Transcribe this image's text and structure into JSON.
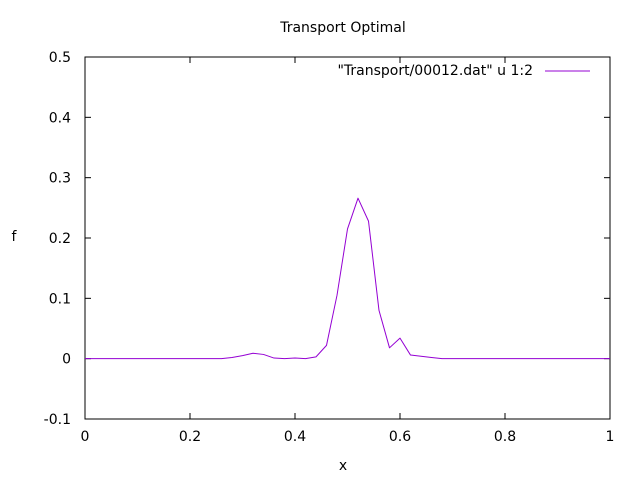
{
  "chart_data": {
    "type": "line",
    "title": "Transport Optimal",
    "xlabel": "x",
    "ylabel": "f",
    "xlim": [
      0,
      1
    ],
    "ylim": [
      -0.1,
      0.5
    ],
    "x_ticks": [
      "0",
      "0.2",
      "0.4",
      "0.6",
      "0.8",
      "1"
    ],
    "y_ticks": [
      "-0.1",
      "0",
      "0.1",
      "0.2",
      "0.3",
      "0.4",
      "0.5"
    ],
    "grid": false,
    "legend_position": "top-right",
    "series": [
      {
        "name": "\"Transport/00012.dat\" u 1:2",
        "color": "#9400d3",
        "x": [
          0,
          0.02,
          0.04,
          0.06,
          0.08,
          0.1,
          0.12,
          0.14,
          0.16,
          0.18,
          0.2,
          0.22,
          0.24,
          0.26,
          0.28,
          0.3,
          0.32,
          0.34,
          0.36,
          0.38,
          0.4,
          0.42,
          0.44,
          0.46,
          0.48,
          0.5,
          0.52,
          0.54,
          0.56,
          0.58,
          0.6,
          0.62,
          0.64,
          0.66,
          0.68,
          0.7,
          0.72,
          0.74,
          0.76,
          0.78,
          0.8,
          0.82,
          0.84,
          0.86,
          0.88,
          0.9,
          0.92,
          0.94,
          0.96,
          0.98,
          1.0
        ],
        "y": [
          0,
          0,
          0,
          0,
          0,
          0,
          0,
          0,
          0,
          0,
          0,
          0,
          0,
          0,
          0.002,
          0.005,
          0.009,
          0.007,
          0.001,
          0,
          0.001,
          0,
          0.003,
          0.022,
          0.105,
          0.215,
          0.266,
          0.228,
          0.08,
          0.018,
          0.034,
          0.006,
          0.004,
          0.002,
          0,
          0,
          0,
          0,
          0,
          0,
          0,
          0,
          0,
          0,
          0,
          0,
          0,
          0,
          0,
          0,
          0
        ]
      }
    ]
  }
}
